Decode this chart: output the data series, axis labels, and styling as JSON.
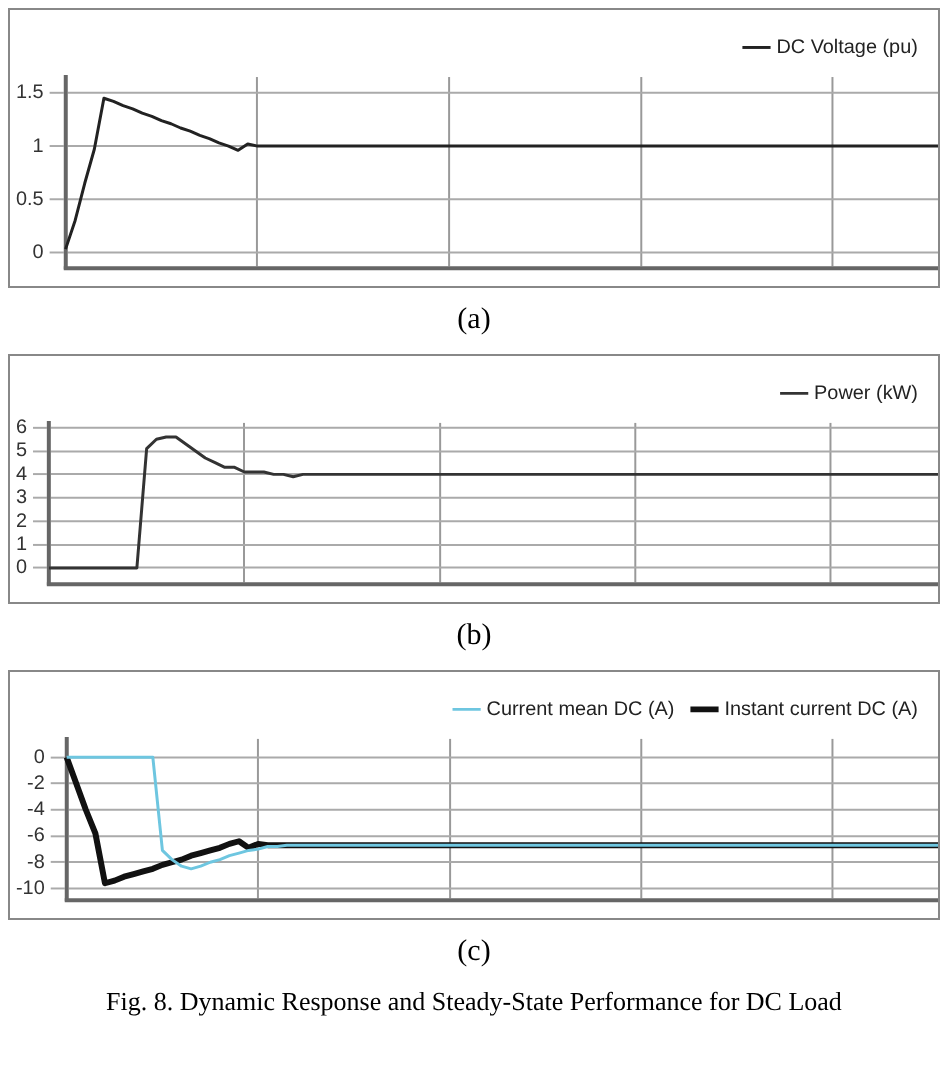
{
  "chart_data": [
    {
      "type": "line",
      "categories": [
        null,
        null,
        null,
        null,
        null,
        null,
        null,
        null,
        null,
        null,
        null,
        null,
        null,
        null,
        null,
        null,
        null,
        null,
        null,
        null,
        null,
        null,
        null,
        null,
        null,
        null,
        null,
        null,
        null,
        null,
        null,
        null,
        null,
        null,
        null,
        null,
        null,
        null,
        null,
        null,
        null,
        null,
        null,
        null,
        null,
        null,
        null,
        null,
        null,
        null,
        null,
        null,
        null,
        null,
        null,
        null,
        null,
        null,
        null,
        null,
        null,
        null,
        null,
        null,
        null,
        null,
        null,
        null,
        null,
        null,
        null,
        null,
        null,
        null,
        null,
        null,
        null,
        null,
        null,
        null,
        null,
        null,
        null,
        null,
        null,
        null,
        null,
        null,
        null,
        null,
        null,
        null
      ],
      "series": [
        {
          "name": "DC Voltage (pu)",
          "color": "#222222",
          "values": [
            0.03,
            0.3,
            0.65,
            0.97,
            1.45,
            1.42,
            1.38,
            1.35,
            1.31,
            1.28,
            1.24,
            1.21,
            1.17,
            1.14,
            1.1,
            1.07,
            1.03,
            1.0,
            0.96,
            1.02,
            1,
            1,
            1,
            1,
            1,
            1,
            1,
            1,
            1,
            1,
            1,
            1,
            1,
            1,
            1,
            1,
            1,
            1,
            1,
            1,
            1,
            1,
            1,
            1,
            1,
            1,
            1,
            1,
            1,
            1,
            1,
            1,
            1,
            1,
            1,
            1,
            1,
            1,
            1,
            1,
            1,
            1,
            1,
            1,
            1,
            1,
            1,
            1,
            1,
            1,
            1,
            1,
            1,
            1,
            1,
            1,
            1,
            1,
            1,
            1,
            1,
            1,
            1,
            1,
            1,
            1,
            1,
            1,
            1,
            1,
            1,
            1
          ]
        }
      ],
      "ylim": [
        -0.15,
        1.65
      ],
      "yticks": [
        0,
        0.5,
        1,
        1.5
      ],
      "grid": true,
      "legend": "top right",
      "tick_labels": "y",
      "marker": "none",
      "line_style": "solid",
      "annotations": [
        "(a)"
      ]
    },
    {
      "type": "line",
      "categories": [
        null,
        null,
        null,
        null,
        null,
        null,
        null,
        null,
        null,
        null,
        null,
        null,
        null,
        null,
        null,
        null,
        null,
        null,
        null,
        null,
        null,
        null,
        null,
        null,
        null,
        null,
        null,
        null,
        null,
        null,
        null,
        null,
        null,
        null,
        null,
        null,
        null,
        null,
        null,
        null,
        null,
        null,
        null,
        null,
        null,
        null,
        null,
        null,
        null,
        null,
        null,
        null,
        null,
        null,
        null,
        null,
        null,
        null,
        null,
        null,
        null,
        null,
        null,
        null,
        null,
        null,
        null,
        null,
        null,
        null,
        null,
        null,
        null,
        null,
        null,
        null,
        null,
        null,
        null,
        null,
        null,
        null,
        null,
        null,
        null,
        null,
        null,
        null,
        null,
        null,
        null,
        null
      ],
      "series": [
        {
          "name": "Power (kW)",
          "color": "#333333",
          "values": [
            0,
            0,
            0,
            0,
            0,
            0,
            0,
            0,
            0,
            0,
            5.1,
            5.5,
            5.6,
            5.6,
            5.3,
            5.0,
            4.7,
            4.5,
            4.3,
            4.3,
            4.1,
            4.1,
            4.1,
            4.0,
            4.0,
            3.9,
            4.0,
            4.0,
            4,
            4,
            4,
            4,
            4,
            4,
            4,
            4,
            4,
            4,
            4,
            4,
            4,
            4,
            4,
            4,
            4,
            4,
            4,
            4,
            4,
            4,
            4,
            4,
            4,
            4,
            4,
            4,
            4,
            4,
            4,
            4,
            4,
            4,
            4,
            4,
            4,
            4,
            4,
            4,
            4,
            4,
            4,
            4,
            4,
            4,
            4,
            4,
            4,
            4,
            4,
            4,
            4,
            4,
            4,
            4,
            4,
            4,
            4,
            4,
            4,
            4,
            4,
            4
          ]
        }
      ],
      "ylim": [
        -0.7,
        6.2
      ],
      "yticks": [
        0,
        1,
        2,
        3,
        4,
        5,
        6
      ],
      "grid": true,
      "legend": "top right",
      "tick_labels": "y",
      "marker": "none",
      "line_style": "solid",
      "annotations": [
        "(b)"
      ]
    },
    {
      "type": "line",
      "categories": [
        null,
        null,
        null,
        null,
        null,
        null,
        null,
        null,
        null,
        null,
        null,
        null,
        null,
        null,
        null,
        null,
        null,
        null,
        null,
        null,
        null,
        null,
        null,
        null,
        null,
        null,
        null,
        null,
        null,
        null,
        null,
        null,
        null,
        null,
        null,
        null,
        null,
        null,
        null,
        null,
        null,
        null,
        null,
        null,
        null,
        null,
        null,
        null,
        null,
        null,
        null,
        null,
        null,
        null,
        null,
        null,
        null,
        null,
        null,
        null,
        null,
        null,
        null,
        null,
        null,
        null,
        null,
        null,
        null,
        null,
        null,
        null,
        null,
        null,
        null,
        null,
        null,
        null,
        null,
        null,
        null,
        null,
        null,
        null,
        null,
        null,
        null,
        null,
        null,
        null,
        null,
        null
      ],
      "series": [
        {
          "name": "Instant current DC (A)",
          "color": "#111111",
          "values": [
            0,
            -2,
            -4,
            -5.8,
            -9.6,
            -9.4,
            -9.1,
            -8.9,
            -8.7,
            -8.5,
            -8.2,
            -8.0,
            -7.8,
            -7.5,
            -7.3,
            -7.1,
            -6.9,
            -6.6,
            -6.4,
            -6.9,
            -6.6,
            -6.7,
            -6.7,
            -6.7,
            -6.7,
            -6.7,
            -6.7,
            -6.7,
            -6.7,
            -6.7,
            -6.7,
            -6.7,
            -6.7,
            -6.7,
            -6.7,
            -6.7,
            -6.7,
            -6.7,
            -6.7,
            -6.7,
            -6.7,
            -6.7,
            -6.7,
            -6.7,
            -6.7,
            -6.7,
            -6.7,
            -6.7,
            -6.7,
            -6.7,
            -6.7,
            -6.7,
            -6.7,
            -6.7,
            -6.7,
            -6.7,
            -6.7,
            -6.7,
            -6.7,
            -6.7,
            -6.7,
            -6.7,
            -6.7,
            -6.7,
            -6.7,
            -6.7,
            -6.7,
            -6.7,
            -6.7,
            -6.7,
            -6.7,
            -6.7,
            -6.7,
            -6.7,
            -6.7,
            -6.7,
            -6.7,
            -6.7,
            -6.7,
            -6.7,
            -6.7,
            -6.7,
            -6.7,
            -6.7,
            -6.7,
            -6.7,
            -6.7,
            -6.7,
            -6.7,
            -6.7,
            -6.7,
            -6.7
          ]
        },
        {
          "name": "Current mean DC (A)",
          "color": "#6ec6e0",
          "values": [
            0,
            0,
            0,
            0,
            0,
            0,
            0,
            0,
            0,
            0,
            -7.1,
            -7.8,
            -8.3,
            -8.5,
            -8.3,
            -8.0,
            -7.8,
            -7.5,
            -7.3,
            -7.1,
            -7.0,
            -6.8,
            -6.8,
            -6.7,
            -6.7,
            -6.7,
            -6.7,
            -6.7,
            -6.7,
            -6.7,
            -6.7,
            -6.7,
            -6.7,
            -6.7,
            -6.7,
            -6.7,
            -6.7,
            -6.7,
            -6.7,
            -6.7,
            -6.7,
            -6.7,
            -6.7,
            -6.7,
            -6.7,
            -6.7,
            -6.7,
            -6.7,
            -6.7,
            -6.7,
            -6.7,
            -6.7,
            -6.7,
            -6.7,
            -6.7,
            -6.7,
            -6.7,
            -6.7,
            -6.7,
            -6.7,
            -6.7,
            -6.7,
            -6.7,
            -6.7,
            -6.7,
            -6.7,
            -6.7,
            -6.7,
            -6.7,
            -6.7,
            -6.7,
            -6.7,
            -6.7,
            -6.7,
            -6.7,
            -6.7,
            -6.7,
            -6.7,
            -6.7,
            -6.7,
            -6.7,
            -6.7,
            -6.7,
            -6.7,
            -6.7,
            -6.7,
            -6.7,
            -6.7,
            -6.7,
            -6.7,
            -6.7,
            -6.7
          ]
        }
      ],
      "ylim": [
        -10.9,
        1.4
      ],
      "yticks": [
        0,
        -2,
        -4,
        -6,
        -8,
        -10
      ],
      "grid": true,
      "legend": "top right",
      "tick_labels": "y",
      "marker": "none",
      "line_style": "solid",
      "annotations": [
        "(c)",
        "Fig. 8.  Dynamic Response and Steady-State Performance for DC Load"
      ]
    }
  ]
}
